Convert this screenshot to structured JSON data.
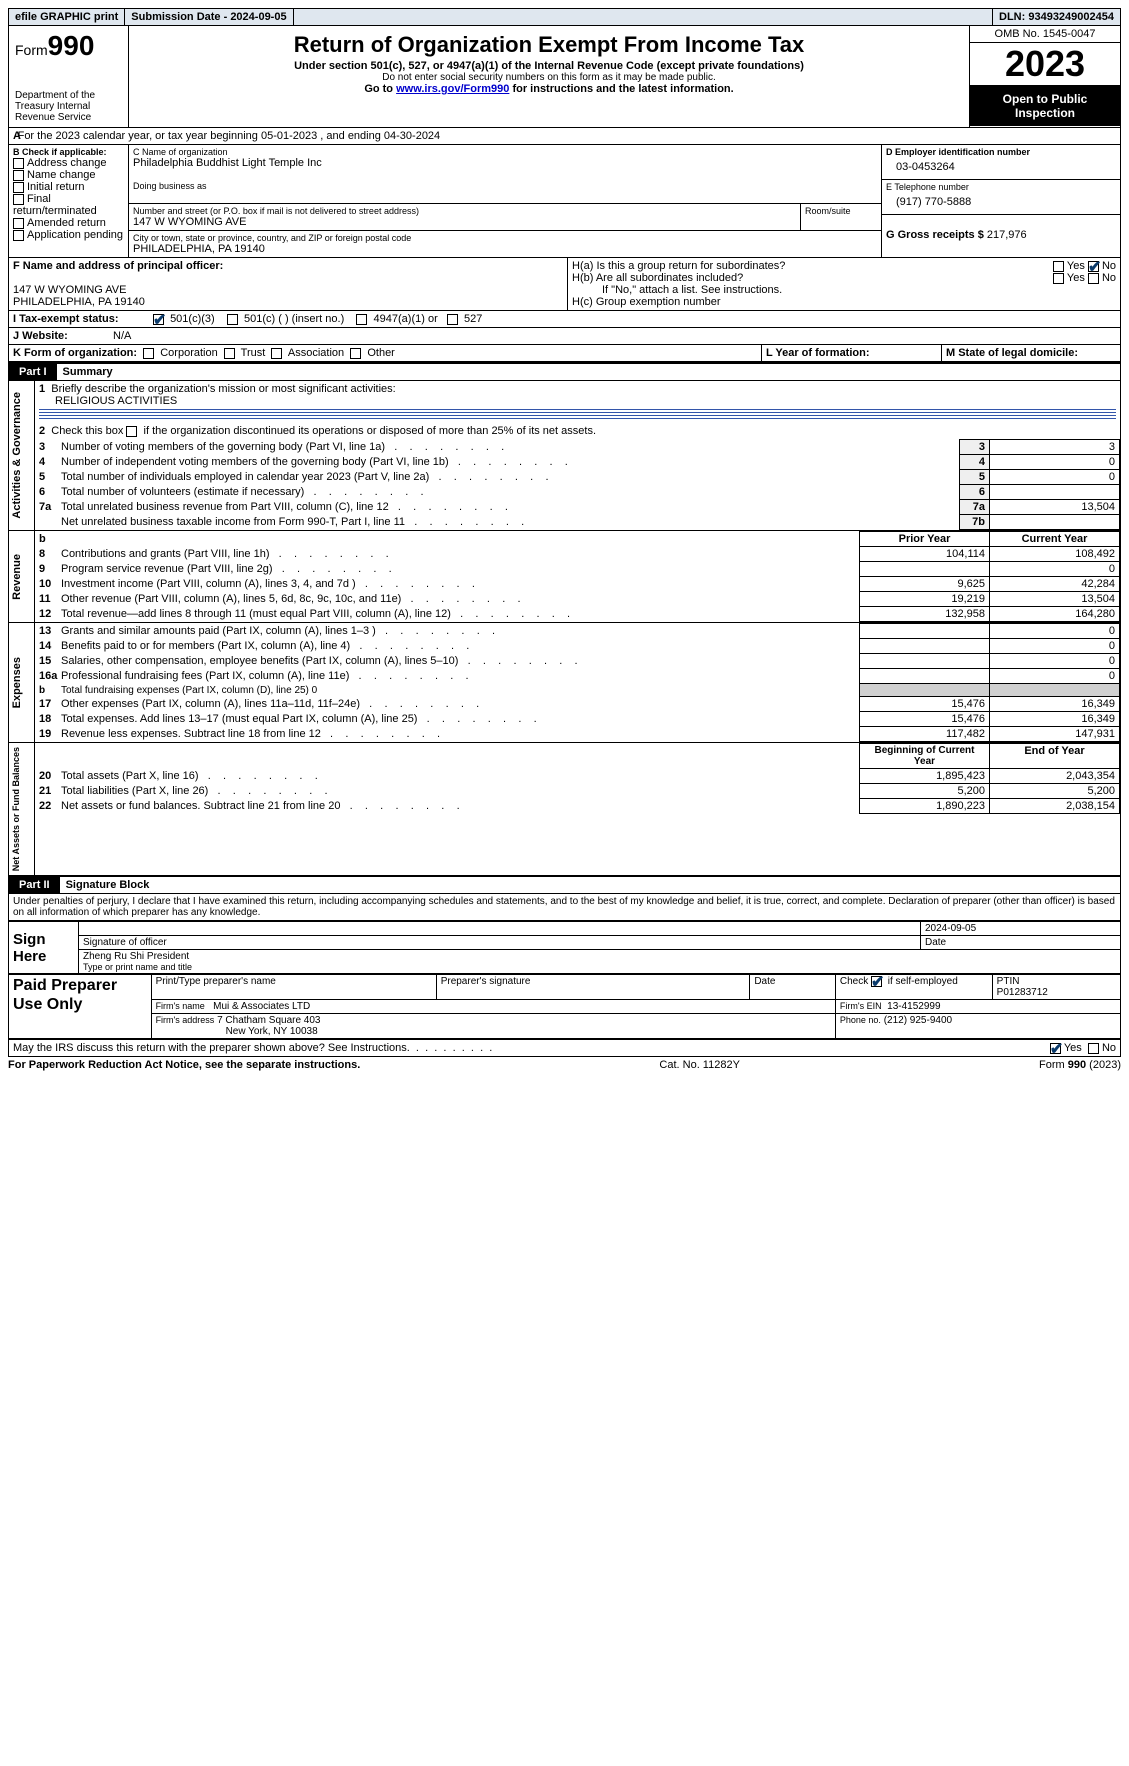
{
  "topbar": {
    "efile": "efile GRAPHIC print",
    "submission": "Submission Date - 2024-09-05",
    "dln_label": "DLN:",
    "dln": "93493249002454"
  },
  "header": {
    "form_prefix": "Form",
    "form_no": "990",
    "dept": "Department of the Treasury Internal Revenue Service",
    "title": "Return of Organization Exempt From Income Tax",
    "sub1": "Under section 501(c), 527, or 4947(a)(1) of the Internal Revenue Code (except private foundations)",
    "sub2": "Do not enter social security numbers on this form as it may be made public.",
    "sub3_pre": "Go to ",
    "sub3_link": "www.irs.gov/Form990",
    "sub3_post": " for instructions and the latest information.",
    "omb": "OMB No. 1545-0047",
    "year": "2023",
    "open": "Open to Public Inspection"
  },
  "a_line": "For the 2023 calendar year, or tax year beginning 05-01-2023    , and ending 04-30-2024",
  "boxB": {
    "title": "B Check if applicable:",
    "items": [
      "Address change",
      "Name change",
      "Initial return",
      "Final return/terminated",
      "Amended return",
      "Application pending"
    ]
  },
  "boxC": {
    "name_label": "C Name of organization",
    "name": "Philadelphia Buddhist Light Temple Inc",
    "dba_label": "Doing business as",
    "street_label": "Number and street (or P.O. box if mail is not delivered to street address)",
    "room_label": "Room/suite",
    "street": "147 W WYOMING AVE",
    "city_label": "City or town, state or province, country, and ZIP or foreign postal code",
    "city": "PHILADELPHIA, PA  19140"
  },
  "boxD": {
    "label": "D Employer identification number",
    "value": "03-0453264"
  },
  "boxE": {
    "label": "E Telephone number",
    "value": "(917) 770-5888"
  },
  "boxG": {
    "label": "G Gross receipts $",
    "value": "217,976"
  },
  "boxF": {
    "label": "F  Name and address of principal officer:",
    "addr1": "147 W WYOMING AVE",
    "addr2": "PHILADELPHIA, PA  19140"
  },
  "boxH": {
    "a": "H(a)  Is this a group return for subordinates?",
    "b": "H(b)  Are all subordinates included?",
    "b_note": "If \"No,\" attach a list. See instructions.",
    "c": "H(c)  Group exemption number"
  },
  "yesno": {
    "yes": "Yes",
    "no": "No"
  },
  "boxI": {
    "label": "I    Tax-exempt status:",
    "o1": "501(c)(3)",
    "o2": "501(c) (  ) (insert no.)",
    "o3": "4947(a)(1) or",
    "o4": "527"
  },
  "boxJ": {
    "label": "J    Website:",
    "value": "N/A"
  },
  "boxK": {
    "label": "K Form of organization:",
    "opts": [
      "Corporation",
      "Trust",
      "Association",
      "Other"
    ]
  },
  "boxL": {
    "label": "L Year of formation:"
  },
  "boxM": {
    "label": "M State of legal domicile:"
  },
  "part1": {
    "part": "Part I",
    "title": "Summary",
    "l1_label": "Briefly describe the organization's mission or most significant activities:",
    "l1_value": "RELIGIOUS ACTIVITIES",
    "l2": "Check this box        if the organization discontinued its operations or disposed of more than 25% of its net assets.",
    "vlabel_ag": "Activities & Governance",
    "vlabel_rev": "Revenue",
    "vlabel_exp": "Expenses",
    "vlabel_na": "Net Assets or Fund Balances",
    "prior": "Prior Year",
    "current": "Current Year",
    "begin": "Beginning of Current Year",
    "end": "End of Year",
    "rows_gov": [
      {
        "n": "3",
        "t": "Number of voting members of the governing body (Part VI, line 1a)",
        "k": "3",
        "v": "3"
      },
      {
        "n": "4",
        "t": "Number of independent voting members of the governing body (Part VI, line 1b)",
        "k": "4",
        "v": "0"
      },
      {
        "n": "5",
        "t": "Total number of individuals employed in calendar year 2023 (Part V, line 2a)",
        "k": "5",
        "v": "0"
      },
      {
        "n": "6",
        "t": "Total number of volunteers (estimate if necessary)",
        "k": "6",
        "v": ""
      },
      {
        "n": "7a",
        "t": "Total unrelated business revenue from Part VIII, column (C), line 12",
        "k": "7a",
        "v": "13,504"
      },
      {
        "n": "",
        "t": "Net unrelated business taxable income from Form 990-T, Part I, line 11",
        "k": "7b",
        "v": ""
      }
    ],
    "rows_rev": [
      {
        "n": "8",
        "t": "Contributions and grants (Part VIII, line 1h)",
        "p": "104,114",
        "c": "108,492"
      },
      {
        "n": "9",
        "t": "Program service revenue (Part VIII, line 2g)",
        "p": "",
        "c": "0"
      },
      {
        "n": "10",
        "t": "Investment income (Part VIII, column (A), lines 3, 4, and 7d )",
        "p": "9,625",
        "c": "42,284"
      },
      {
        "n": "11",
        "t": "Other revenue (Part VIII, column (A), lines 5, 6d, 8c, 9c, 10c, and 11e)",
        "p": "19,219",
        "c": "13,504"
      },
      {
        "n": "12",
        "t": "Total revenue—add lines 8 through 11 (must equal Part VIII, column (A), line 12)",
        "p": "132,958",
        "c": "164,280"
      }
    ],
    "rows_exp": [
      {
        "n": "13",
        "t": "Grants and similar amounts paid (Part IX, column (A), lines 1–3 )",
        "p": "",
        "c": "0"
      },
      {
        "n": "14",
        "t": "Benefits paid to or for members (Part IX, column (A), line 4)",
        "p": "",
        "c": "0"
      },
      {
        "n": "15",
        "t": "Salaries, other compensation, employee benefits (Part IX, column (A), lines 5–10)",
        "p": "",
        "c": "0"
      },
      {
        "n": "16a",
        "t": "Professional fundraising fees (Part IX, column (A), line 11e)",
        "p": "",
        "c": "0"
      },
      {
        "n": "b",
        "t": "Total fundraising expenses (Part IX, column (D), line 25) 0",
        "shade": true
      },
      {
        "n": "17",
        "t": "Other expenses (Part IX, column (A), lines 11a–11d, 11f–24e)",
        "p": "15,476",
        "c": "16,349"
      },
      {
        "n": "18",
        "t": "Total expenses. Add lines 13–17 (must equal Part IX, column (A), line 25)",
        "p": "15,476",
        "c": "16,349"
      },
      {
        "n": "19",
        "t": "Revenue less expenses. Subtract line 18 from line 12",
        "p": "117,482",
        "c": "147,931"
      }
    ],
    "rows_na": [
      {
        "n": "20",
        "t": "Total assets (Part X, line 16)",
        "p": "1,895,423",
        "c": "2,043,354"
      },
      {
        "n": "21",
        "t": "Total liabilities (Part X, line 26)",
        "p": "5,200",
        "c": "5,200"
      },
      {
        "n": "22",
        "t": "Net assets or fund balances. Subtract line 21 from line 20",
        "p": "1,890,223",
        "c": "2,038,154"
      }
    ]
  },
  "part2": {
    "part": "Part II",
    "title": "Signature Block",
    "decl": "Under penalties of perjury, I declare that I have examined this return, including accompanying schedules and statements, and to the best of my knowledge and belief, it is true, correct, and complete. Declaration of preparer (other than officer) is based on all information of which preparer has any knowledge."
  },
  "sign": {
    "here": "Sign Here",
    "sig_officer": "Signature of officer",
    "date": "Date",
    "date_val": "2024-09-05",
    "officer_name": "Zheng Ru Shi  President",
    "type_name": "Type or print name and title"
  },
  "preparer": {
    "label": "Paid Preparer Use Only",
    "print_name": "Print/Type preparer's name",
    "sig": "Preparer's signature",
    "date": "Date",
    "check_se": "Check         if self-employed",
    "ptin_label": "PTIN",
    "ptin": "P01283712",
    "firm_name_label": "Firm's name",
    "firm_name": "Mui & Associates LTD",
    "firm_ein_label": "Firm's EIN",
    "firm_ein": "13-4152999",
    "firm_addr_label": "Firm's address",
    "firm_addr1": "7 Chatham Square 403",
    "firm_addr2": "New York, NY  10038",
    "phone_label": "Phone no.",
    "phone": "(212) 925-9400"
  },
  "discuss": "May the IRS discuss this return with the preparer shown above? See Instructions.",
  "footer": {
    "left": "For Paperwork Reduction Act Notice, see the separate instructions.",
    "mid": "Cat. No. 11282Y",
    "right_pre": "Form ",
    "right_form": "990",
    "right_post": " (2023)"
  }
}
